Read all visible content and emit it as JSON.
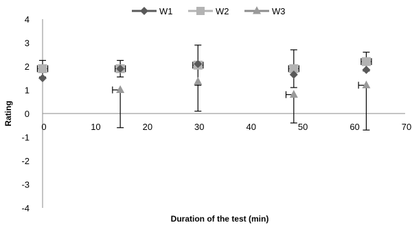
{
  "chart_data": {
    "type": "scatter",
    "title": "",
    "xlabel": "Duration of the test (min)",
    "ylabel": "Rating",
    "xlim": [
      0,
      70
    ],
    "ylim": [
      -4,
      4
    ],
    "x_ticks": [
      0,
      10,
      20,
      30,
      40,
      50,
      60,
      70
    ],
    "y_ticks": [
      -4,
      -3,
      -2,
      -1,
      0,
      1,
      2,
      3,
      4
    ],
    "grid": false,
    "legend_position": "top",
    "series": [
      {
        "name": "W1",
        "marker": "diamond",
        "color": "#595959",
        "line_color": "#595959",
        "points": [
          {
            "x": 0,
            "y": 1.5
          },
          {
            "x": 15,
            "y": 1.9
          },
          {
            "x": 30,
            "y": 2.1
          },
          {
            "x": 48.5,
            "y": 1.65
          },
          {
            "x": 62.5,
            "y": 1.85
          }
        ]
      },
      {
        "name": "W2",
        "marker": "square",
        "color": "#b3b3b3",
        "line_color": "#b3b3b3",
        "points": [
          {
            "x": 0,
            "y": 1.9,
            "yerr": [
              0.35,
              0.35
            ],
            "xerr": [
              1,
              1
            ]
          },
          {
            "x": 15,
            "y": 1.9,
            "yerr": [
              0.35,
              0.35
            ],
            "xerr": [
              1,
              1
            ]
          },
          {
            "x": 30,
            "y": 2.05,
            "yerr": [
              0.85,
              0.85
            ],
            "xerr": [
              1,
              1
            ]
          },
          {
            "x": 48.5,
            "y": 1.9,
            "yerr": [
              0.8,
              0.8
            ],
            "xerr": [
              1,
              1
            ]
          },
          {
            "x": 62.5,
            "y": 2.2,
            "yerr": [
              0.4,
              0.4
            ],
            "xerr": [
              1,
              1
            ]
          }
        ]
      },
      {
        "name": "W3",
        "marker": "triangle",
        "color": "#9a9a9a",
        "line_color": "#8c8c8c",
        "points": [
          {
            "x": 15,
            "y": 1.0,
            "yerr": [
              1.6,
              0
            ],
            "xerr": [
              1.5,
              0
            ]
          },
          {
            "x": 30,
            "y": 1.35,
            "yerr": [
              1.25,
              0
            ],
            "xerr": [
              0,
              0
            ]
          },
          {
            "x": 48.5,
            "y": 0.8,
            "yerr": [
              1.2,
              0
            ],
            "xerr": [
              1.5,
              0
            ]
          },
          {
            "x": 62.5,
            "y": 1.2,
            "yerr": [
              1.9,
              0
            ],
            "xerr": [
              1.5,
              0
            ]
          }
        ]
      }
    ]
  }
}
